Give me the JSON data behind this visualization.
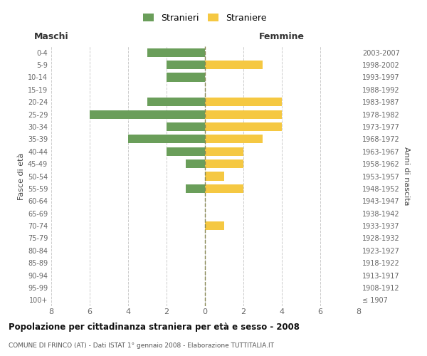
{
  "age_groups": [
    "100+",
    "95-99",
    "90-94",
    "85-89",
    "80-84",
    "75-79",
    "70-74",
    "65-69",
    "60-64",
    "55-59",
    "50-54",
    "45-49",
    "40-44",
    "35-39",
    "30-34",
    "25-29",
    "20-24",
    "15-19",
    "10-14",
    "5-9",
    "0-4"
  ],
  "birth_years": [
    "≤ 1907",
    "1908-1912",
    "1913-1917",
    "1918-1922",
    "1923-1927",
    "1928-1932",
    "1933-1937",
    "1938-1942",
    "1943-1947",
    "1948-1952",
    "1953-1957",
    "1958-1962",
    "1963-1967",
    "1968-1972",
    "1973-1977",
    "1978-1982",
    "1983-1987",
    "1988-1992",
    "1993-1997",
    "1998-2002",
    "2003-2007"
  ],
  "males": [
    0,
    0,
    0,
    0,
    0,
    0,
    0,
    0,
    0,
    1,
    0,
    1,
    2,
    4,
    2,
    6,
    3,
    0,
    2,
    2,
    3
  ],
  "females": [
    0,
    0,
    0,
    0,
    0,
    0,
    1,
    0,
    0,
    2,
    1,
    2,
    2,
    3,
    4,
    4,
    4,
    0,
    0,
    3,
    0
  ],
  "male_color": "#6a9e5a",
  "female_color": "#f5c842",
  "title": "Popolazione per cittadinanza straniera per età e sesso - 2008",
  "subtitle": "COMUNE DI FRINCO (AT) - Dati ISTAT 1° gennaio 2008 - Elaborazione TUTTITALIA.IT",
  "ylabel_left": "Fasce di età",
  "ylabel_right": "Anni di nascita",
  "header_male": "Maschi",
  "header_female": "Femmine",
  "legend_male": "Stranieri",
  "legend_female": "Straniere",
  "xlim": 8,
  "background_color": "#ffffff",
  "grid_color": "#cccccc",
  "text_color": "#666666",
  "bar_height": 0.7
}
